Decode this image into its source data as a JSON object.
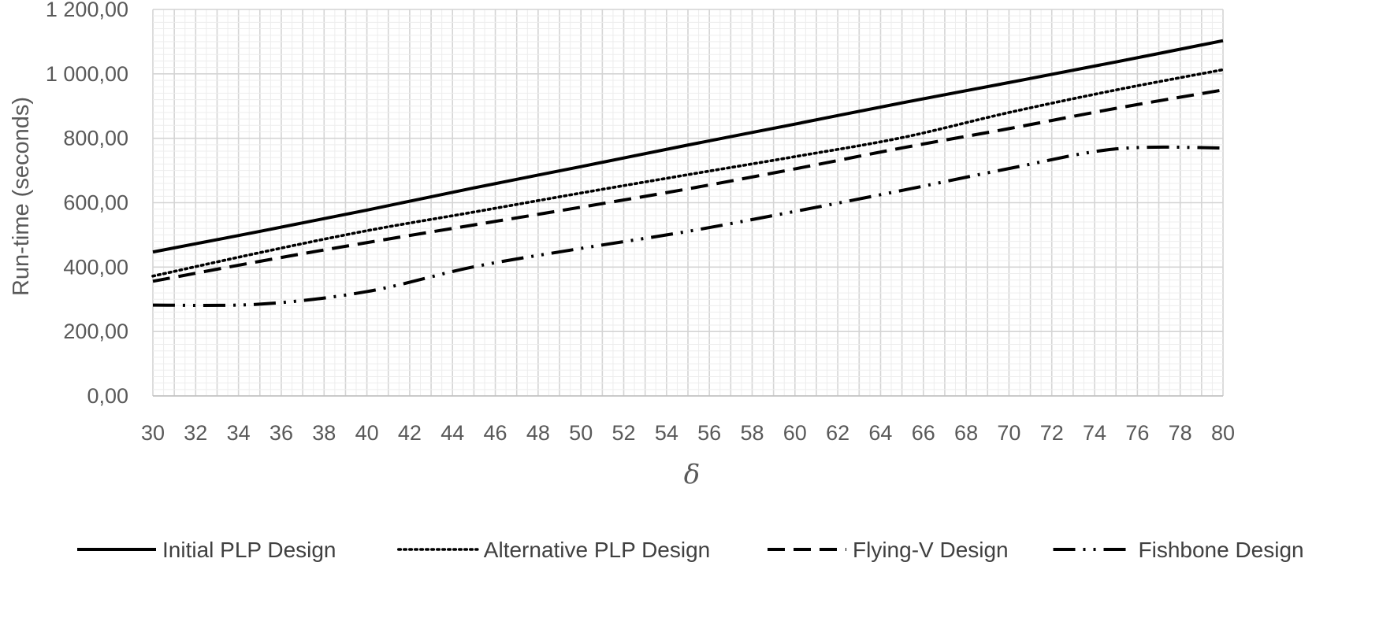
{
  "chart_data": {
    "type": "line",
    "title": "",
    "xlabel": "δ",
    "ylabel": "Run-time (seconds)",
    "xlim": [
      30,
      80
    ],
    "ylim": [
      0,
      1200
    ],
    "x_ticks": [
      "30",
      "32",
      "34",
      "36",
      "38",
      "40",
      "42",
      "44",
      "46",
      "48",
      "50",
      "52",
      "54",
      "56",
      "58",
      "60",
      "62",
      "64",
      "66",
      "68",
      "70",
      "72",
      "74",
      "76",
      "78",
      "80"
    ],
    "y_ticks": [
      {
        "value": 0,
        "label": "0,00"
      },
      {
        "value": 200,
        "label": "200,00"
      },
      {
        "value": 400,
        "label": "400,00"
      },
      {
        "value": 600,
        "label": "600,00"
      },
      {
        "value": 800,
        "label": "800,00"
      },
      {
        "value": 1000,
        "label": "1 000,00"
      },
      {
        "value": 1200,
        "label": "1 200,00"
      }
    ],
    "x_minor_step": 0.5,
    "y_minor_step": 20,
    "grid": true,
    "legend_position": "bottom",
    "x": [
      30,
      35,
      40,
      45,
      50,
      55,
      60,
      65,
      70,
      75,
      80
    ],
    "series": [
      {
        "name": "Initial PLP Design",
        "style": "solid",
        "values": [
          447,
          511,
          577,
          646,
          712,
          779,
          844,
          910,
          973,
          1037,
          1103
        ]
      },
      {
        "name": "Alternative PLP Design",
        "style": "dotted",
        "values": [
          372,
          445,
          513,
          571,
          630,
          687,
          743,
          802,
          880,
          950,
          1013
        ]
      },
      {
        "name": "Flying-V Design",
        "style": "dashed",
        "values": [
          356,
          418,
          476,
          531,
          586,
          643,
          705,
          770,
          830,
          893,
          950
        ]
      },
      {
        "name": "Fishbone Design",
        "style": "dash-dot-dot",
        "values": [
          282,
          285,
          324,
          401,
          458,
          511,
          573,
          638,
          706,
          767,
          770
        ]
      }
    ]
  }
}
